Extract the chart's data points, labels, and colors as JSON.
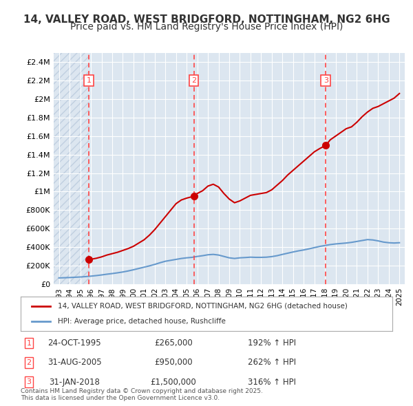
{
  "title": "14, VALLEY ROAD, WEST BRIDGFORD, NOTTINGHAM, NG2 6HG",
  "subtitle": "Price paid vs. HM Land Registry's House Price Index (HPI)",
  "title_fontsize": 11,
  "subtitle_fontsize": 10,
  "background_color": "#ffffff",
  "plot_bg_color": "#dce6f0",
  "hatch_color": "#c0cfe0",
  "grid_color": "#ffffff",
  "ylim": [
    0,
    2500000
  ],
  "xlim_start": 1992.5,
  "xlim_end": 2025.5,
  "yticks": [
    0,
    200000,
    400000,
    600000,
    800000,
    1000000,
    1200000,
    1400000,
    1600000,
    1800000,
    2000000,
    2200000,
    2400000
  ],
  "ytick_labels": [
    "£0",
    "£200K",
    "£400K",
    "£600K",
    "£800K",
    "£1M",
    "£1.2M",
    "£1.4M",
    "£1.6M",
    "£1.8M",
    "£2M",
    "£2.2M",
    "£2.4M"
  ],
  "xticks": [
    1993,
    1994,
    1995,
    1996,
    1997,
    1998,
    1999,
    2000,
    2001,
    2002,
    2003,
    2004,
    2005,
    2006,
    2007,
    2008,
    2009,
    2010,
    2011,
    2012,
    2013,
    2014,
    2015,
    2016,
    2017,
    2018,
    2019,
    2020,
    2021,
    2022,
    2023,
    2024,
    2025
  ],
  "transactions": [
    {
      "num": 1,
      "date": "24-OCT-1995",
      "year": 1995.81,
      "price": 265000,
      "pct": "192%",
      "dir": "↑"
    },
    {
      "num": 2,
      "date": "31-AUG-2005",
      "year": 2005.67,
      "price": 950000,
      "pct": "262%",
      "dir": "↑"
    },
    {
      "num": 3,
      "date": "31-JAN-2018",
      "year": 2018.08,
      "price": 1500000,
      "pct": "316%",
      "dir": "↑"
    }
  ],
  "red_line_color": "#cc0000",
  "blue_line_color": "#6699cc",
  "marker_color": "#cc0000",
  "vline_color": "#ff4444",
  "legend_label_red": "14, VALLEY ROAD, WEST BRIDGFORD, NOTTINGHAM, NG2 6HG (detached house)",
  "legend_label_blue": "HPI: Average price, detached house, Rushcliffe",
  "footer_text": "Contains HM Land Registry data © Crown copyright and database right 2025.\nThis data is licensed under the Open Government Licence v3.0.",
  "red_line_x": [
    1995.81,
    1996.5,
    1997.0,
    1997.5,
    1998.0,
    1998.5,
    1999.0,
    1999.5,
    2000.0,
    2000.5,
    2001.0,
    2001.5,
    2002.0,
    2002.5,
    2003.0,
    2003.5,
    2004.0,
    2004.5,
    2005.0,
    2005.67,
    2006.0,
    2006.5,
    2007.0,
    2007.5,
    2008.0,
    2008.5,
    2009.0,
    2009.5,
    2010.0,
    2010.5,
    2011.0,
    2011.5,
    2012.0,
    2012.5,
    2013.0,
    2013.5,
    2014.0,
    2014.5,
    2015.0,
    2015.5,
    2016.0,
    2016.5,
    2017.0,
    2017.5,
    2018.08,
    2018.5,
    2019.0,
    2019.5,
    2020.0,
    2020.5,
    2021.0,
    2021.5,
    2022.0,
    2022.5,
    2023.0,
    2023.5,
    2024.0,
    2024.5,
    2025.0
  ],
  "red_line_y": [
    265000,
    280000,
    295000,
    315000,
    330000,
    345000,
    365000,
    385000,
    410000,
    445000,
    480000,
    530000,
    590000,
    660000,
    730000,
    800000,
    870000,
    910000,
    930000,
    950000,
    980000,
    1010000,
    1060000,
    1080000,
    1050000,
    980000,
    920000,
    880000,
    900000,
    930000,
    960000,
    970000,
    980000,
    990000,
    1020000,
    1070000,
    1120000,
    1180000,
    1230000,
    1280000,
    1330000,
    1380000,
    1430000,
    1465000,
    1500000,
    1560000,
    1600000,
    1640000,
    1680000,
    1700000,
    1750000,
    1810000,
    1860000,
    1900000,
    1920000,
    1950000,
    1980000,
    2010000,
    2060000
  ],
  "blue_line_x": [
    1993.0,
    1993.5,
    1994.0,
    1994.5,
    1995.0,
    1995.5,
    1996.0,
    1996.5,
    1997.0,
    1997.5,
    1998.0,
    1998.5,
    1999.0,
    1999.5,
    2000.0,
    2000.5,
    2001.0,
    2001.5,
    2002.0,
    2002.5,
    2003.0,
    2003.5,
    2004.0,
    2004.5,
    2005.0,
    2005.5,
    2006.0,
    2006.5,
    2007.0,
    2007.5,
    2008.0,
    2008.5,
    2009.0,
    2009.5,
    2010.0,
    2010.5,
    2011.0,
    2011.5,
    2012.0,
    2012.5,
    2013.0,
    2013.5,
    2014.0,
    2014.5,
    2015.0,
    2015.5,
    2016.0,
    2016.5,
    2017.0,
    2017.5,
    2018.0,
    2018.5,
    2019.0,
    2019.5,
    2020.0,
    2020.5,
    2021.0,
    2021.5,
    2022.0,
    2022.5,
    2023.0,
    2023.5,
    2024.0,
    2024.5,
    2025.0
  ],
  "blue_line_y": [
    68000,
    70000,
    72000,
    75000,
    78000,
    82000,
    87000,
    93000,
    100000,
    108000,
    115000,
    123000,
    132000,
    143000,
    156000,
    170000,
    184000,
    198000,
    214000,
    232000,
    248000,
    258000,
    268000,
    278000,
    285000,
    290000,
    300000,
    308000,
    318000,
    322000,
    315000,
    300000,
    285000,
    278000,
    285000,
    288000,
    292000,
    290000,
    290000,
    292000,
    298000,
    308000,
    322000,
    335000,
    348000,
    360000,
    370000,
    382000,
    395000,
    408000,
    418000,
    428000,
    435000,
    440000,
    445000,
    452000,
    462000,
    472000,
    482000,
    478000,
    468000,
    455000,
    448000,
    445000,
    448000
  ]
}
